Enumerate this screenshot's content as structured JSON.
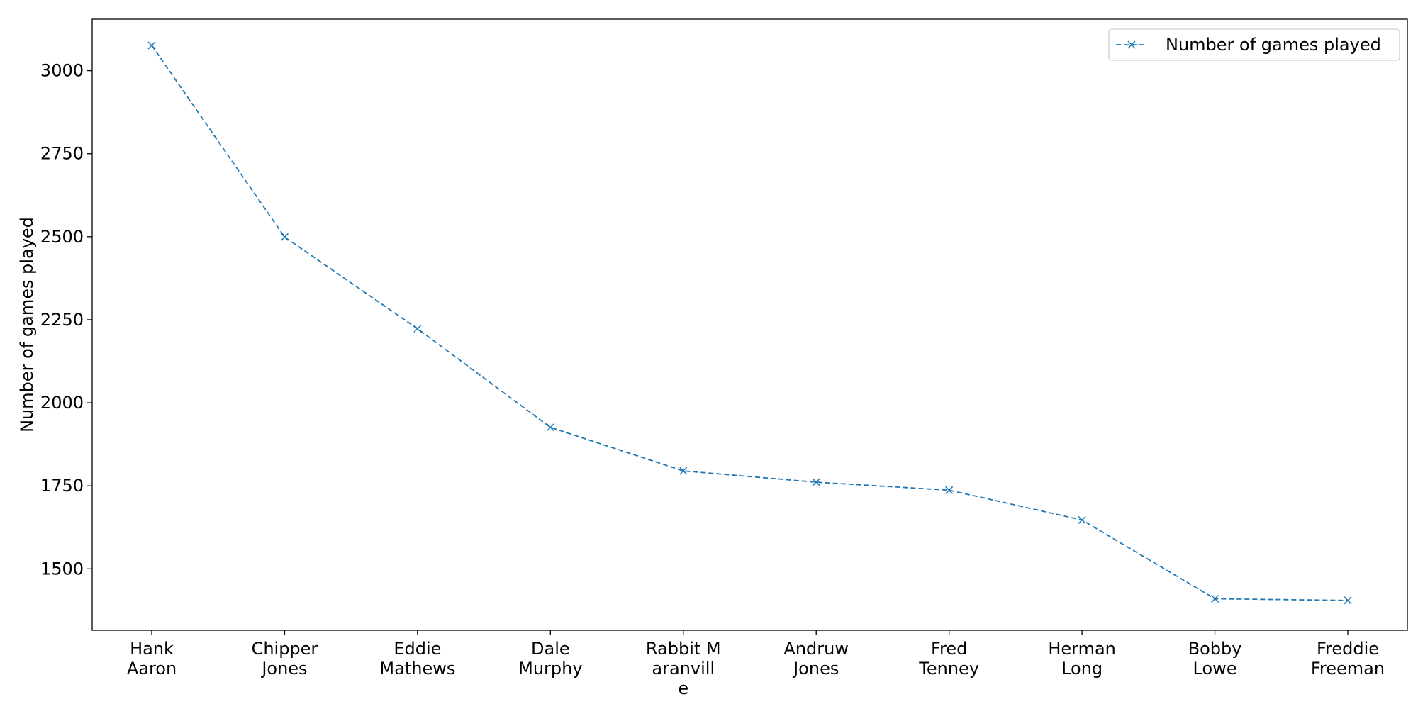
{
  "chart_data": {
    "type": "line",
    "categories": [
      [
        "Hank",
        "Aaron"
      ],
      [
        "Chipper",
        "Jones"
      ],
      [
        "Eddie",
        "Mathews"
      ],
      [
        "Dale",
        "Murphy"
      ],
      [
        "Rabbit M",
        "aranvill",
        "e"
      ],
      [
        "Andruw",
        "Jones"
      ],
      [
        "Fred",
        "Tenney"
      ],
      [
        "Herman",
        "Long"
      ],
      [
        "Bobby",
        "Lowe"
      ],
      [
        "Freddie",
        "Freeman"
      ]
    ],
    "series": [
      {
        "name": "Number of games played",
        "values": [
          3076,
          2499,
          2223,
          1926,
          1795,
          1761,
          1737,
          1647,
          1410,
          1405
        ],
        "color": "#1f77b4",
        "line_style": "dashed",
        "marker": "x"
      }
    ],
    "title": "",
    "xlabel": "",
    "ylabel": "Number of games played",
    "ylim": [
      1315,
      3155
    ],
    "yticks": [
      1500,
      1750,
      2000,
      2250,
      2500,
      2750,
      3000
    ],
    "grid": false,
    "legend_position": "top-right"
  }
}
